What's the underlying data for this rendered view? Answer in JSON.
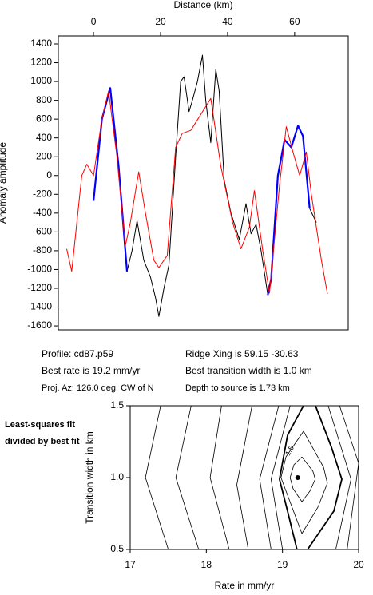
{
  "chart_data": [
    {
      "type": "line",
      "xlabel": "Distance (km)",
      "ylabel": "Anomaly amplitude",
      "xlim": [
        -10.5,
        76
      ],
      "xticks": [
        0,
        20,
        40,
        60
      ],
      "ylim": [
        -1642,
        1485
      ],
      "yticks": [
        -1600,
        -1400,
        -1200,
        -1000,
        -800,
        -600,
        -400,
        -200,
        0,
        200,
        400,
        600,
        800,
        1000,
        1200,
        1400
      ],
      "series": [
        {
          "color": "#000000",
          "width": 1,
          "x": [
            0,
            2.5,
            5,
            7.5,
            10,
            11.5,
            13,
            15,
            17,
            18.5,
            19.5,
            21,
            22.5,
            24.5,
            26,
            27,
            28.5,
            29.5,
            31,
            32.5,
            33.5,
            35,
            36.5,
            37.5,
            39,
            41,
            43.5,
            45.5,
            47,
            48.5,
            50,
            52,
            53,
            55,
            57,
            59,
            61,
            62.5,
            64.5,
            66.5
          ],
          "values": [
            -270,
            600,
            930,
            100,
            -1020,
            -800,
            -480,
            -900,
            -1080,
            -1300,
            -1500,
            -1200,
            -950,
            200,
            1000,
            1050,
            680,
            800,
            1000,
            1280,
            800,
            350,
            1130,
            900,
            -50,
            -400,
            -680,
            -300,
            -620,
            -520,
            -800,
            -1270,
            -1100,
            0,
            380,
            300,
            530,
            420,
            -350,
            -500
          ]
        },
        {
          "color": "#0000ff",
          "width": 2.2,
          "x": [
            0,
            2.5,
            5,
            7.5,
            10,
            null,
            52,
            53,
            55,
            57,
            59,
            61,
            62.5,
            64.5
          ],
          "values": [
            -270,
            600,
            930,
            100,
            -1020,
            null,
            -1270,
            -1100,
            0,
            380,
            300,
            530,
            420,
            -350
          ]
        },
        {
          "color": "#ff0000",
          "width": 1,
          "x": [
            -8,
            -6.5,
            -3.5,
            -2,
            0,
            2.5,
            4.5,
            7,
            9.5,
            11,
            13.5,
            15.5,
            18,
            19.5,
            22,
            24.5,
            26.5,
            29,
            32,
            35,
            38,
            41.5,
            44,
            46.5,
            48,
            50.5,
            52.5,
            55.5,
            57.5,
            59.5,
            61.5,
            63.5,
            65,
            68,
            69.8
          ],
          "values": [
            -780,
            -1020,
            0,
            120,
            0,
            600,
            900,
            200,
            -750,
            -500,
            40,
            -400,
            -900,
            -980,
            -850,
            300,
            450,
            480,
            650,
            820,
            100,
            -500,
            -780,
            -550,
            -160,
            -800,
            -1250,
            -100,
            520,
            250,
            0,
            250,
            -200,
            -900,
            -1260
          ]
        }
      ],
      "annotations": [
        "Profile: cd87.p59",
        "Ridge Xing is 59.15 -30.63",
        "Best rate is 19.2 mm/yr",
        "Best transition width is 1.0 km",
        "Proj. Az: 126.0 deg. CW of N",
        "Depth to source is   1.73 km"
      ]
    },
    {
      "type": "contour",
      "title": "Least-squares fit divided by best fit",
      "xlabel": "Rate in mm/yr",
      "ylabel": "Transition width in km",
      "xlim": [
        17,
        20
      ],
      "xticks": [
        17,
        18,
        19,
        20
      ],
      "ylim": [
        0.5,
        1.5
      ],
      "yticks": [
        0.5,
        {
          "value": 1,
          "label": "1.0"
        },
        1.5
      ],
      "series": [
        {
          "color": "#000000",
          "width": 0.8,
          "x": [
            19.255,
            19.4,
            19.43,
            19.36,
            19.255,
            19.14,
            19.1,
            19.15,
            19.255
          ],
          "values": [
            1.144,
            1.044,
            0.989,
            0.906,
            0.833,
            0.922,
            1.0,
            1.089,
            1.144
          ]
        },
        {
          "color": "#000000",
          "width": 0.8,
          "level": 1.5,
          "x": [
            19.276,
            19.54,
            19.59,
            19.465,
            19.255,
            19.066,
            18.98,
            19.045,
            19.276
          ],
          "values": [
            1.322,
            1.072,
            0.961,
            0.794,
            0.611,
            0.878,
            1.0,
            1.144,
            1.322
          ]
        },
        {
          "color": "#000000",
          "width": 1.8,
          "x": [
            19.434,
            19.643,
            19.78,
            19.675,
            19.33
          ],
          "values": [
            1.5,
            1.211,
            0.989,
            0.767,
            0.5
          ]
        },
        {
          "color": "#000000",
          "width": 1.8,
          "x": [
            19.276,
            19.066,
            18.96,
            19.066,
            19.19
          ],
          "values": [
            1.5,
            1.294,
            0.989,
            0.767,
            0.5
          ]
        },
        {
          "color": "#000000",
          "width": 0.8,
          "x": [
            19.6,
            19.9,
            19.7
          ],
          "values": [
            1.5,
            0.989,
            0.5
          ]
        },
        {
          "color": "#000000",
          "width": 0.8,
          "x": [
            19.75,
            20,
            19.85
          ],
          "values": [
            1.5,
            1.1,
            0.5
          ]
        },
        {
          "color": "#000000",
          "width": 0.8,
          "x": [
            19.1,
            18.85,
            19.0
          ],
          "values": [
            1.5,
            0.989,
            0.5
          ]
        },
        {
          "color": "#000000",
          "width": 0.8,
          "x": [
            18.95,
            18.7,
            18.85
          ],
          "values": [
            1.5,
            0.989,
            0.5
          ]
        },
        {
          "color": "#000000",
          "width": 0.8,
          "x": [
            18.6,
            18.4,
            18.55
          ],
          "values": [
            1.5,
            0.95,
            0.5
          ]
        },
        {
          "color": "#000000",
          "width": 0.8,
          "x": [
            18.2,
            18.05,
            18.3
          ],
          "values": [
            1.5,
            1.0,
            0.5
          ]
        },
        {
          "color": "#000000",
          "width": 0.8,
          "x": [
            17.8,
            17.6,
            17.9
          ],
          "values": [
            1.5,
            1.0,
            0.5
          ]
        },
        {
          "color": "#000000",
          "width": 0.8,
          "x": [
            17.4,
            17.2,
            17.5
          ],
          "values": [
            1.5,
            1.0,
            0.5
          ]
        }
      ],
      "points": {
        "color": "#000000",
        "x": [
          19.2
        ],
        "values": [
          1.0
        ]
      }
    }
  ]
}
